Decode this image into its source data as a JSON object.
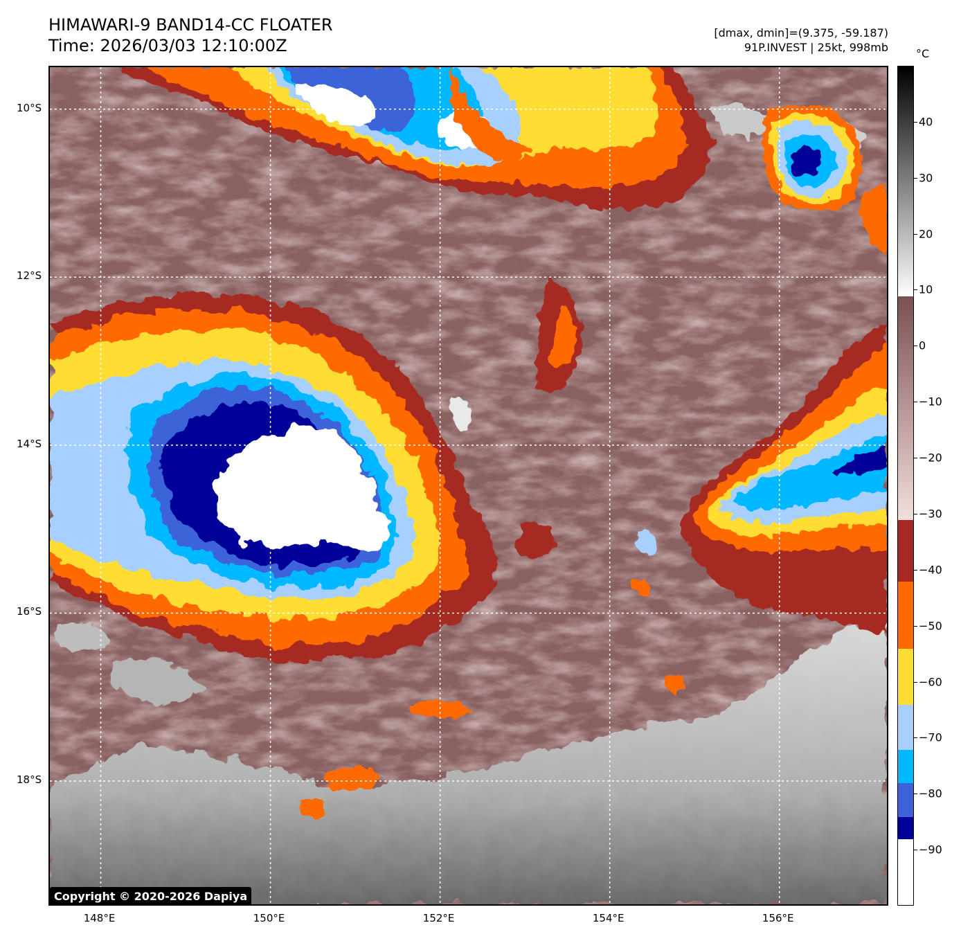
{
  "header": {
    "title_line1": "HIMAWARI-9 BAND14-CC FLOATER",
    "title_line2": "Time: 2026/03/03 12:10:00Z",
    "info_line1": "[dmax, dmin]=(9.375, -59.187)",
    "info_line2": "91P.INVEST | 25kt, 998mb"
  },
  "map": {
    "lon_range": [
      147.4,
      157.3
    ],
    "lat_range": [
      -19.5,
      -9.5
    ],
    "lat_ticks": [
      {
        "value": -10,
        "label": "10°S"
      },
      {
        "value": -12,
        "label": "12°S"
      },
      {
        "value": -14,
        "label": "14°S"
      },
      {
        "value": -16,
        "label": "16°S"
      },
      {
        "value": -18,
        "label": "18°S"
      }
    ],
    "lon_ticks": [
      {
        "value": 148,
        "label": "148°E"
      },
      {
        "value": 150,
        "label": "150°E"
      },
      {
        "value": 152,
        "label": "152°E"
      },
      {
        "value": 154,
        "label": "154°E"
      },
      {
        "value": 156,
        "label": "156°E"
      }
    ],
    "grid": true,
    "background_color": "#8a6161"
  },
  "colorbar": {
    "unit": "°C",
    "range": [
      -100,
      50
    ],
    "labels": [
      {
        "value": 40,
        "label": "40"
      },
      {
        "value": 30,
        "label": "30"
      },
      {
        "value": 20,
        "label": "20"
      },
      {
        "value": 10,
        "label": "10"
      },
      {
        "value": 0,
        "label": "0"
      },
      {
        "value": -10,
        "label": "−10"
      },
      {
        "value": -20,
        "label": "−20"
      },
      {
        "value": -30,
        "label": "−30"
      },
      {
        "value": -40,
        "label": "−40"
      },
      {
        "value": -50,
        "label": "−50"
      },
      {
        "value": -60,
        "label": "−60"
      },
      {
        "value": -70,
        "label": "−70"
      },
      {
        "value": -80,
        "label": "−80"
      },
      {
        "value": -90,
        "label": "−90"
      }
    ],
    "bands": [
      {
        "from": 9,
        "to": 50,
        "color_top": "#000000",
        "color_bottom": "#ffffff"
      },
      {
        "from": -31,
        "to": 9,
        "color_top": "#7a5050",
        "color_bottom": "#f3dede"
      },
      {
        "from": -42,
        "to": -31,
        "color_top": "#a52a23",
        "color_bottom": "#a52a23"
      },
      {
        "from": -54,
        "to": -42,
        "color_top": "#ff6a00",
        "color_bottom": "#ff6a00"
      },
      {
        "from": -64,
        "to": -54,
        "color_top": "#ffdd33",
        "color_bottom": "#ffdd33"
      },
      {
        "from": -72,
        "to": -64,
        "color_top": "#a8d0ff",
        "color_bottom": "#a8d0ff"
      },
      {
        "from": -78,
        "to": -72,
        "color_top": "#00b8ff",
        "color_bottom": "#00b8ff"
      },
      {
        "from": -84,
        "to": -78,
        "color_top": "#3e63d8",
        "color_bottom": "#3e63d8"
      },
      {
        "from": -88,
        "to": -84,
        "color_top": "#000099",
        "color_bottom": "#000099"
      },
      {
        "from": -100,
        "to": -88,
        "color_top": "#ffffff",
        "color_bottom": "#ffffff"
      }
    ]
  },
  "cloud_colors": {
    "warm": "#a52a23",
    "orange": "#ff6a00",
    "yellow": "#ffdd33",
    "lightblue": "#a8d0ff",
    "cyan": "#00b8ff",
    "blue": "#3e63d8",
    "navy": "#000099",
    "white": "#ffffff",
    "gray_light": "#d8d8d8",
    "gray_mid": "#a8a8a8",
    "gray_dark": "#6e6e6e",
    "pink": "#e9c9c9"
  },
  "copyright": "Copyright © 2020-2026 Dapiya"
}
